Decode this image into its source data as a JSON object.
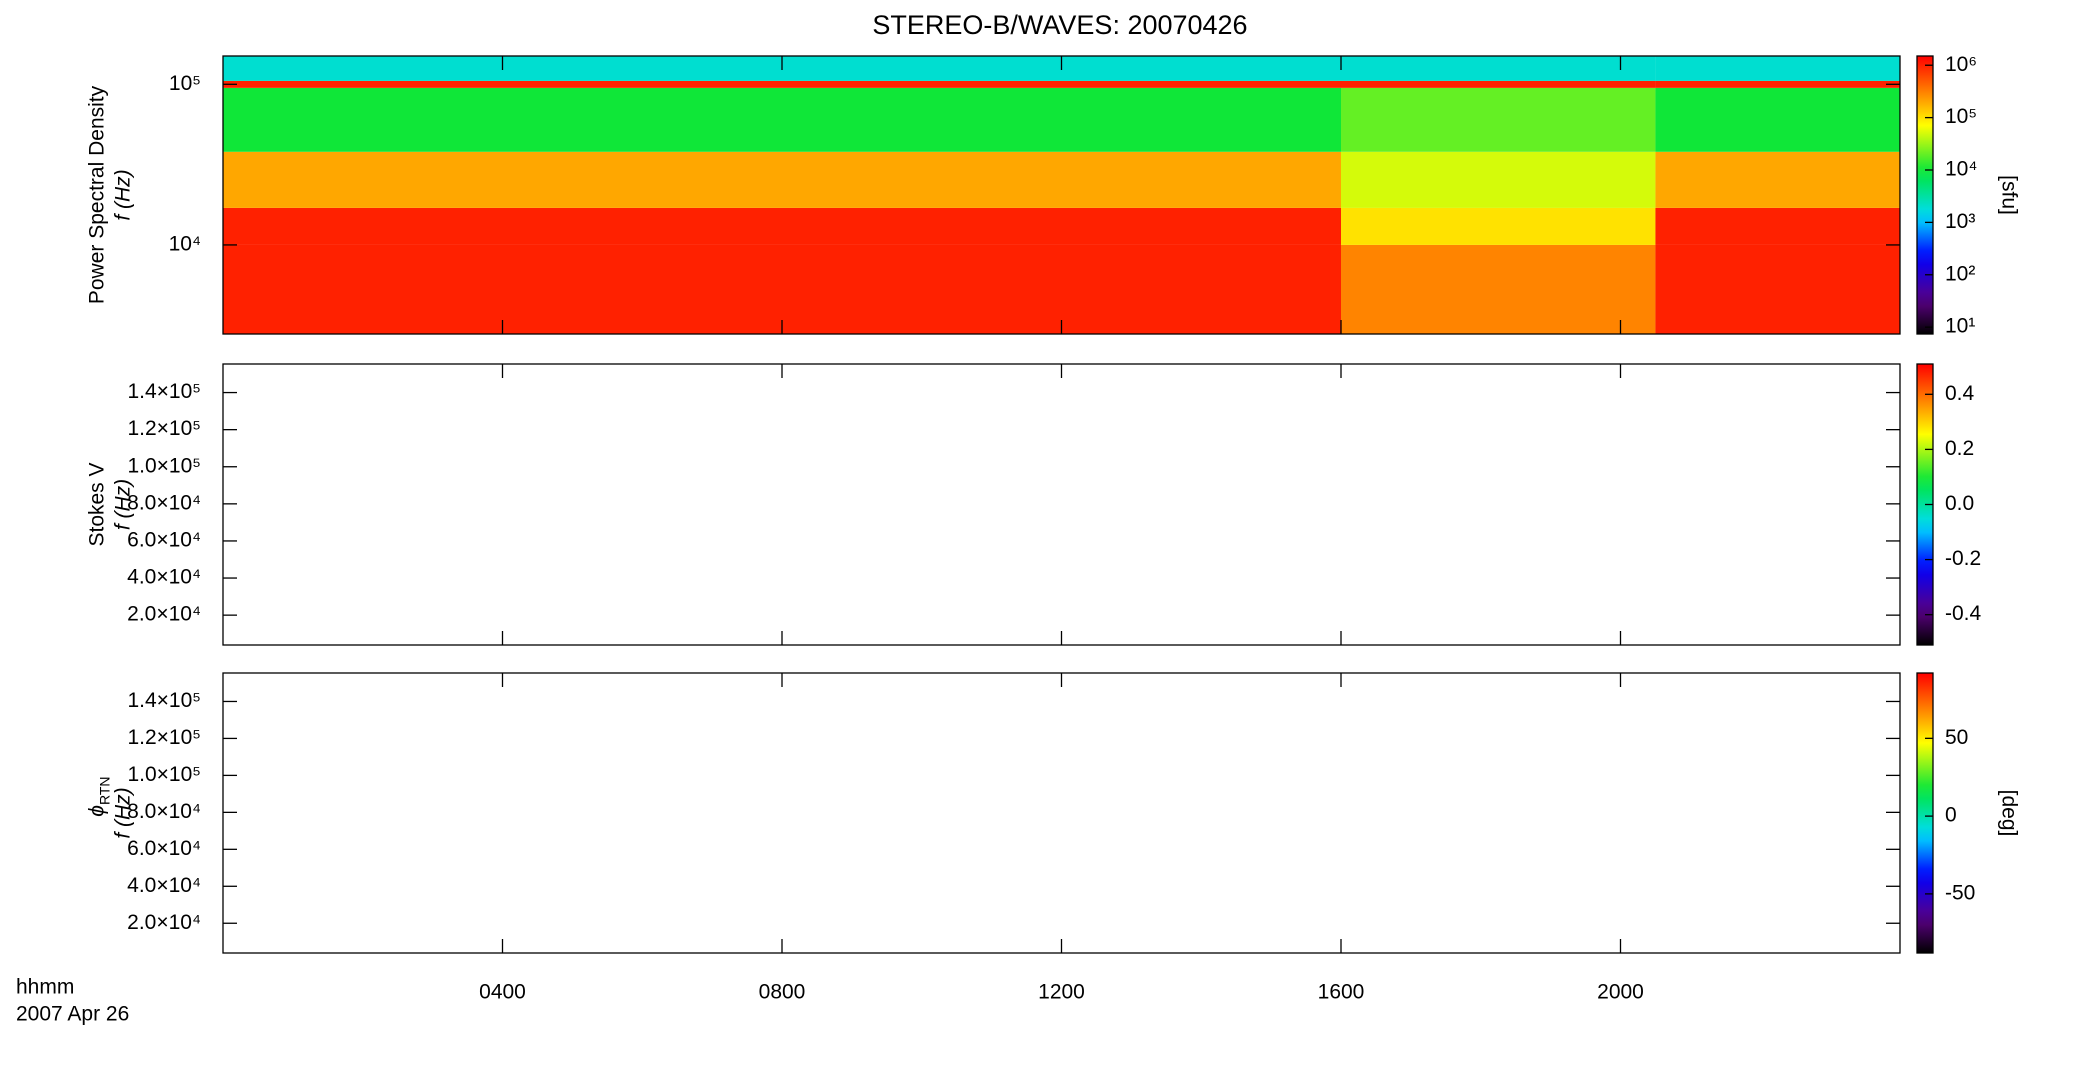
{
  "chart_data": [
    {
      "type": "heatmap",
      "title": "STEREO-B/WAVES: 20070426",
      "ylabel": "Power Spectral Density",
      "ylabel2": "f (Hz)",
      "colorbar_label": "[sfu]",
      "colormap": "rainbow",
      "ylog": true,
      "zlog": true,
      "xlim": [
        0,
        24
      ],
      "xticks": [
        4,
        8,
        12,
        16,
        20
      ],
      "ylim": [
        2790,
        150000
      ],
      "yticks": [
        {
          "value": 10000,
          "label": "10⁴"
        },
        {
          "value": 100000,
          "label": "10⁵"
        }
      ],
      "x_edges": [
        0,
        16,
        20.5,
        24
      ],
      "y_edges": [
        2790,
        10000,
        17000,
        38000,
        95000,
        105000,
        150000
      ],
      "z": [
        [
          1000000,
          300000,
          1000000
        ],
        [
          1000000,
          100000,
          1000000
        ],
        [
          200000,
          50000,
          200000
        ],
        [
          10000,
          20000,
          10000
        ],
        [
          1000000,
          1000000,
          1000000
        ],
        [
          2000,
          2000,
          2000
        ]
      ],
      "zlim": [
        7.4,
        1500000
      ],
      "zticks": [
        {
          "value": 10,
          "label": "10¹"
        },
        {
          "value": 100,
          "label": "10²"
        },
        {
          "value": 1000,
          "label": "10³"
        },
        {
          "value": 10000,
          "label": "10⁴"
        },
        {
          "value": 100000,
          "label": "10⁵"
        },
        {
          "value": 1000000,
          "label": "10⁶"
        }
      ]
    },
    {
      "type": "heatmap",
      "ylabel": "Stokes V",
      "ylabel2": "f (Hz)",
      "colormap": "rainbow",
      "ylog": false,
      "zlog": false,
      "xlim": [
        0,
        24
      ],
      "xticks": [
        4,
        8,
        12,
        16,
        20
      ],
      "ylim": [
        3900,
        155400
      ],
      "yticks": [
        {
          "value": 20000,
          "label": "2.0×10⁴"
        },
        {
          "value": 40000,
          "label": "4.0×10⁴"
        },
        {
          "value": 60000,
          "label": "6.0×10⁴"
        },
        {
          "value": 80000,
          "label": "8.0×10⁴"
        },
        {
          "value": 100000,
          "label": "1.0×10⁵"
        },
        {
          "value": 120000,
          "label": "1.2×10⁵"
        },
        {
          "value": 140000,
          "label": "1.4×10⁵"
        }
      ],
      "zlim": [
        -0.51,
        0.51
      ],
      "zticks": [
        -0.4,
        -0.2,
        {
          "value": 0,
          "label": "0.0"
        },
        0.2,
        0.4
      ]
    },
    {
      "type": "heatmap",
      "ylabel_symbol": "ϕ",
      "ylabel_subscript": "RTN",
      "ylabel2": "f (Hz)",
      "colorbar_label": "[deg]",
      "colormap": "rainbow",
      "ylog": false,
      "zlog": false,
      "xlim": [
        0,
        24
      ],
      "xticks": [
        {
          "value": 4,
          "label": "0400"
        },
        {
          "value": 8,
          "label": "0800"
        },
        {
          "value": 12,
          "label": "1200"
        },
        {
          "value": 16,
          "label": "1600"
        },
        {
          "value": 20,
          "label": "2000"
        }
      ],
      "xlabel": "hhmm",
      "xsublabel": "2007 Apr 26",
      "ylim": [
        3900,
        155400
      ],
      "yticks": [
        {
          "value": 20000,
          "label": "2.0×10⁴"
        },
        {
          "value": 40000,
          "label": "4.0×10⁴"
        },
        {
          "value": 60000,
          "label": "6.0×10⁴"
        },
        {
          "value": 80000,
          "label": "8.0×10⁴"
        },
        {
          "value": 100000,
          "label": "1.0×10⁵"
        },
        {
          "value": 120000,
          "label": "1.2×10⁵"
        },
        {
          "value": 140000,
          "label": "1.4×10⁵"
        }
      ],
      "zlim": [
        -88,
        92
      ],
      "zticks": [
        -50,
        0,
        50
      ]
    }
  ]
}
